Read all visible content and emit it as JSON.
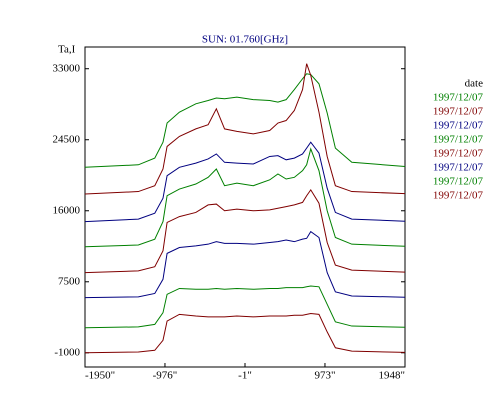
{
  "chart_data": {
    "type": "line",
    "title": "SUN: 01.760[GHz]",
    "y_label": "Ta,I",
    "legend_title": "date",
    "legend": "right",
    "x": [
      -1950,
      -1300,
      -1100,
      -1000,
      -950,
      -800,
      -600,
      -450,
      -350,
      -250,
      -100,
      100,
      300,
      400,
      500,
      600,
      700,
      750,
      800,
      900,
      1000,
      1100,
      1300,
      1948
    ],
    "xlim": [
      -1950,
      1948
    ],
    "xticks": [
      {
        "value": -1950,
        "label": "-1950\""
      },
      {
        "value": -976,
        "label": "-976\""
      },
      {
        "value": -1,
        "label": "-1\""
      },
      {
        "value": 973,
        "label": "973\""
      },
      {
        "value": 1948,
        "label": "1948\""
      }
    ],
    "ylim": [
      -2700,
      35600
    ],
    "yticks": [
      -1000,
      7500,
      16000,
      24500,
      33000
    ],
    "series": [
      {
        "name": "1997/12/07",
        "color": "#008000",
        "values": [
          21200,
          21500,
          22300,
          24200,
          26500,
          27800,
          28800,
          29200,
          29500,
          29400,
          29600,
          29300,
          29200,
          29000,
          29300,
          30500,
          31800,
          32400,
          32300,
          31200,
          27700,
          23500,
          21800,
          21300
        ]
      },
      {
        "name": "1997/12/07",
        "color": "#800000",
        "values": [
          18000,
          18300,
          19000,
          21000,
          23700,
          24900,
          25800,
          26300,
          28200,
          25800,
          25500,
          25200,
          25600,
          26500,
          26800,
          28000,
          30500,
          33600,
          32200,
          27800,
          22500,
          19000,
          18300,
          18050
        ]
      },
      {
        "name": "1997/12/07",
        "color": "#000080",
        "values": [
          14700,
          15000,
          15700,
          17500,
          20200,
          21200,
          21700,
          22200,
          22800,
          21800,
          21700,
          21600,
          22500,
          22600,
          22100,
          22300,
          22800,
          23500,
          24200,
          22900,
          18700,
          15800,
          15000,
          14750
        ]
      },
      {
        "name": "1997/12/07",
        "color": "#008000",
        "values": [
          11700,
          11900,
          12600,
          14700,
          17800,
          18600,
          19200,
          20000,
          21000,
          19000,
          19300,
          19000,
          19700,
          20400,
          19800,
          20000,
          20800,
          21500,
          23400,
          20800,
          16000,
          12800,
          12000,
          11750
        ]
      },
      {
        "name": "1997/12/07",
        "color": "#800000",
        "values": [
          8600,
          8800,
          9300,
          11200,
          14600,
          15300,
          15800,
          16700,
          16800,
          16000,
          16200,
          16000,
          16100,
          16300,
          16500,
          16700,
          17000,
          17800,
          18500,
          16900,
          12200,
          9500,
          8900,
          8650
        ]
      },
      {
        "name": "1997/12/07",
        "color": "#000080",
        "values": [
          5600,
          5700,
          6100,
          7800,
          10900,
          11600,
          11800,
          12000,
          12300,
          12100,
          12100,
          12000,
          12200,
          12300,
          12500,
          12300,
          12600,
          12700,
          13500,
          12800,
          8600,
          6300,
          5800,
          5650
        ]
      },
      {
        "name": "1997/12/07",
        "color": "#008000",
        "values": [
          2000,
          2100,
          2400,
          3800,
          6000,
          6700,
          6600,
          6600,
          6700,
          6600,
          6700,
          6600,
          6700,
          6700,
          6800,
          6800,
          6800,
          6900,
          7000,
          6900,
          4800,
          2700,
          2200,
          2050
        ]
      },
      {
        "name": "1997/12/07",
        "color": "#800000",
        "values": [
          -1000,
          -900,
          -700,
          500,
          2800,
          3600,
          3400,
          3300,
          3300,
          3300,
          3400,
          3300,
          3400,
          3400,
          3400,
          3500,
          3500,
          3600,
          3700,
          3600,
          1500,
          -400,
          -800,
          -950
        ]
      }
    ]
  }
}
